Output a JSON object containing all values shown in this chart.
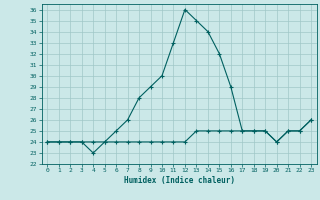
{
  "xlabel": "Humidex (Indice chaleur)",
  "background_color": "#cbe8e8",
  "grid_color": "#a0c8c8",
  "line_color": "#006060",
  "xlim": [
    -0.5,
    23.5
  ],
  "ylim": [
    22,
    36.5
  ],
  "yticks": [
    22,
    23,
    24,
    25,
    26,
    27,
    28,
    29,
    30,
    31,
    32,
    33,
    34,
    35,
    36
  ],
  "xticks": [
    0,
    1,
    2,
    3,
    4,
    5,
    6,
    7,
    8,
    9,
    10,
    11,
    12,
    13,
    14,
    15,
    16,
    17,
    18,
    19,
    20,
    21,
    22,
    23
  ],
  "line1_x": [
    0,
    1,
    2,
    3,
    4,
    5,
    6,
    7,
    8,
    9,
    10,
    11,
    12,
    13,
    14,
    15,
    16,
    17,
    18,
    19,
    20,
    21,
    22,
    23
  ],
  "line1_y": [
    24,
    24,
    24,
    24,
    23,
    24,
    25,
    26,
    28,
    29,
    30,
    33,
    36,
    35,
    34,
    32,
    29,
    25,
    25,
    25,
    24,
    25,
    25,
    26
  ],
  "line2_x": [
    0,
    1,
    2,
    3,
    4,
    5,
    6,
    7,
    8,
    9,
    10,
    11,
    12,
    13,
    14,
    15,
    16,
    17,
    18,
    19,
    20,
    21,
    22,
    23
  ],
  "line2_y": [
    24,
    24,
    24,
    24,
    24,
    24,
    24,
    24,
    24,
    24,
    24,
    24,
    24,
    25,
    25,
    25,
    25,
    25,
    25,
    25,
    24,
    25,
    25,
    26
  ]
}
